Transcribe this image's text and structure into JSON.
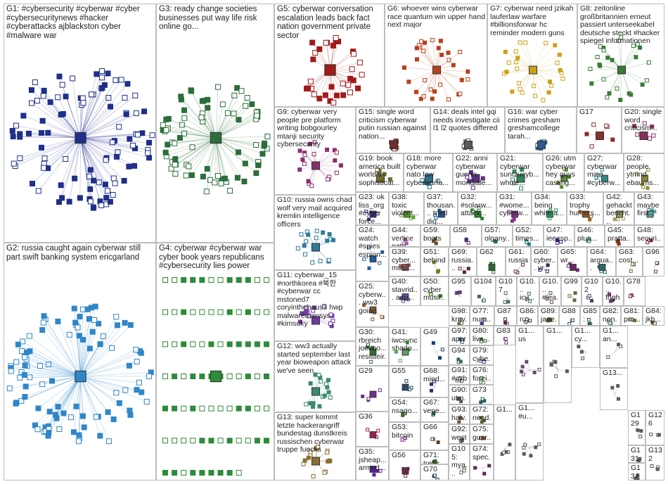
{
  "groups": [
    {
      "id": "g1",
      "label": "G1: #cybersecurity #cyberwar #cyber #cybersecuritynews #hacker #cyberattacks ajblackston cyber #malware war",
      "color": "#1f2f8a"
    },
    {
      "id": "g2",
      "label": "G2: russia caught again cyberwar still part swift banking system ericgarland",
      "color": "#2f86c8"
    },
    {
      "id": "g3",
      "label": "G3: ready change societies businesses put way life risk online go...",
      "color": "#2c6e3a"
    },
    {
      "id": "g4",
      "label": "G4: cyberwar #cyberwar war cyber book years republicans #cybersecurity lies power",
      "color": "#2d8b3a"
    },
    {
      "id": "g5",
      "label": "G5: cyberwar conversation escalation leads back fact nation government private sector",
      "color": "#a11a1a"
    },
    {
      "id": "g6",
      "label": "G6: whoever wins cyberwar race quantum win upper hand next major",
      "color": "#b7411a"
    },
    {
      "id": "g7",
      "label": "G7: cyberwar need jzikah lauferlaw warfare #billionsforwar hc reminder modern guns",
      "color": "#c9a21a"
    },
    {
      "id": "g8",
      "label": "G8: zeitonline großbritannien erneut passiert unterseekabel deutsche steckt #hacker spiegel informationen",
      "color": "#3a7a3a"
    },
    {
      "id": "g9",
      "label": "G9: cyberwar very people pre platform writing bobgourley mtanji security cybersecurity",
      "color": "#8a2f6e"
    },
    {
      "id": "g10",
      "label": "G10: russia owns chad wolf very mail acquired kremlin intelligence officers",
      "color": "#2f7a9a"
    },
    {
      "id": "g11",
      "label": "G11: cyberwar_15 #northkorea #북한 #cyberwar cc mstoned7 coryinthehous3 hwp malwaremansys #kimsuky",
      "color": "#6e3aa1"
    },
    {
      "id": "g12",
      "label": "G12: ww3 actually started september last year bioweapon attack we've seen",
      "color": "#3a8a6e"
    },
    {
      "id": "g13",
      "label": "G13: super kommt letzte hackerangriff bundestag dunstkreis russischen cyberwar truppe fuecks",
      "color": "#8a6e2f"
    },
    {
      "id": "g14",
      "label": "G14: deals intel gqi needs investigate cii l1 l2 quotes differed",
      "color": "#5a5a5a"
    },
    {
      "id": "g15",
      "label": "G15: single word criticism cyberwar putin russian against nation...",
      "color": "#6e2f2f"
    },
    {
      "id": "g16",
      "label": "G16: war cyber crimes gresham greshamcollege tarah...",
      "color": "#2f5a8a"
    },
    {
      "id": "g17",
      "label": "G17",
      "color": "#8a2f2f"
    },
    {
      "id": "g18",
      "label": "G18: more cyberwar nato law cyberwarfa...",
      "color": "#2f6e8a"
    },
    {
      "id": "g19",
      "label": "G19: book america built world's sophisticat...",
      "color": "#6e6e2f"
    },
    {
      "id": "g20",
      "label": "G20: single word criticism...",
      "color": "#8a2f5a"
    },
    {
      "id": "g21",
      "label": "G21: cyberwar suntzucyb... whole...",
      "color": "#2f8a5a"
    },
    {
      "id": "g22",
      "label": "G22: anni cyberwar guerra mondiale...",
      "color": "#5a2f8a"
    },
    {
      "id": "g23",
      "label": "G23: uk liss_org #cyber force...",
      "color": "#2f2f8a"
    },
    {
      "id": "g24",
      "label": "G24: watch #spies espion...",
      "color": "#1f5fa0"
    },
    {
      "id": "g25",
      "label": "G25: cyberw... ww3 going",
      "color": "#8a5a2f"
    },
    {
      "id": "g26",
      "label": "G26: utm cyberwar hey guys casting...",
      "color": "#5a8a2f"
    },
    {
      "id": "g27",
      "label": "G27: cyberwar mine #cyberw...",
      "color": "#2f8a8a"
    },
    {
      "id": "g28",
      "label": "G28: people ytmnd ebaums...",
      "color": "#8a8a2f"
    },
    {
      "id": "g29",
      "label": "G29",
      "color": "#6e2f8a"
    },
    {
      "id": "g30",
      "label": "G30: rbreich joekno... resisteir...",
      "color": "#2f6e2f"
    },
    {
      "id": "g31",
      "label": "G31: #wome... cyberw...",
      "color": "#8a2f8a"
    },
    {
      "id": "g32",
      "label": "G32: #solarw... attack...",
      "color": "#2f8a2f"
    },
    {
      "id": "g33",
      "label": "G33: trophy hunters...",
      "color": "#a05a1f"
    },
    {
      "id": "g34",
      "label": "G34: being white a...",
      "color": "#1fa05a"
    },
    {
      "id": "g35",
      "label": "G35: jsheap... armed...",
      "color": "#5a1fa0"
    },
    {
      "id": "g36",
      "label": "G36",
      "color": "#a01f5a"
    },
    {
      "id": "g37",
      "label": "G37: thousan... tried dig...",
      "color": "#1f5aa0"
    },
    {
      "id": "g38",
      "label": "G38: toxic violent...",
      "color": "#5aa01f"
    },
    {
      "id": "g39",
      "label": "G39: cyber... musli...",
      "color": "#a05a5a"
    },
    {
      "id": "g40",
      "label": "G40: stavrid... aep...",
      "color": "#5a5aa0"
    },
    {
      "id": "g41",
      "label": "G41: iwcsync shado...",
      "color": "#5aa05a"
    },
    {
      "id": "g42",
      "label": "G42: gehackt bericht...",
      "color": "#a0a05a"
    },
    {
      "id": "g43",
      "label": "G43: maybe first...",
      "color": "#5aa0a0"
    },
    {
      "id": "g44",
      "label": "G44: vertice nato...",
      "color": "#a05aa0"
    },
    {
      "id": "g45",
      "label": "G45: pratta...",
      "color": "#7a3a1a"
    },
    {
      "id": "g46",
      "label": "G46: plus...",
      "color": "#1a7a3a"
    },
    {
      "id": "g47",
      "label": "G47: ieeesp...",
      "color": "#3a1a7a"
    },
    {
      "id": "g48",
      "label": "G48: securi...",
      "color": "#7a1a3a"
    },
    {
      "id": "g49",
      "label": "G49",
      "color": "#1a3a7a"
    },
    {
      "id": "g50",
      "label": "G50: cyber musli...",
      "color": "#3a7a1a"
    },
    {
      "id": "g51",
      "label": "G51: behind",
      "color": "#7a7a1a"
    },
    {
      "id": "g52",
      "label": "G52: times...",
      "color": "#1a7a7a"
    },
    {
      "id": "g53",
      "label": "G53: bitcoin",
      "color": "#7a1a7a"
    },
    {
      "id": "g54",
      "label": "G54: nsago...",
      "color": "#4a6a2a"
    },
    {
      "id": "g55",
      "label": "G55",
      "color": "#2a4a6a"
    },
    {
      "id": "g56",
      "label": "G56",
      "color": "#6a2a4a"
    },
    {
      "id": "g57",
      "label": "G57: olgany...",
      "color": "#2a6a4a"
    },
    {
      "id": "g58",
      "label": "G58",
      "color": "#4a2a6a"
    },
    {
      "id": "g59",
      "label": "G59: boots",
      "color": "#6a4a2a"
    },
    {
      "id": "g60",
      "label": "G60: cyber... vr...",
      "color": "#2a2a6a"
    },
    {
      "id": "g61",
      "label": "G61: russia",
      "color": "#6a2a2a"
    },
    {
      "id": "g62",
      "label": "G62",
      "color": "#2a6a2a"
    },
    {
      "id": "g63",
      "label": "G63: cost...",
      "color": "#6a6a2a"
    },
    {
      "id": "g64",
      "label": "G64: argua...",
      "color": "#2a6a6a"
    },
    {
      "id": "g65",
      "label": "G65: wr...",
      "color": "#6a2a6a"
    },
    {
      "id": "g66",
      "label": "G66",
      "color": "#5a3a2a"
    },
    {
      "id": "g67",
      "label": "G67: vene...",
      "color": "#2a5a3a"
    },
    {
      "id": "g68",
      "label": "G68: mind...",
      "color": "#3a2a5a"
    },
    {
      "id": "g69",
      "label": "G69: russia...",
      "color": "#5a2a3a"
    },
    {
      "id": "g70",
      "label": "G70",
      "color": "#2a3a5a"
    },
    {
      "id": "g71",
      "label": "G71: treas...",
      "color": "#3a5a2a"
    },
    {
      "id": "g72",
      "label": "G72: need...",
      "color": "#5a5a2a"
    },
    {
      "id": "g73",
      "label": "G73",
      "color": "#2a5a5a"
    },
    {
      "id": "g74",
      "label": "G74: spec...",
      "color": "#5a2a5a"
    },
    {
      "id": "g75",
      "label": "G75: guer...",
      "color": "#7a4a3a"
    },
    {
      "id": "g76",
      "label": "G76: forei...",
      "color": "#3a7a4a"
    },
    {
      "id": "g77",
      "label": "G77: num...",
      "color": "#4a3a7a"
    },
    {
      "id": "g78",
      "label": "G78",
      "color": "#7a3a4a"
    },
    {
      "id": "g79",
      "label": "G79: cybe...",
      "color": "#3a4a7a"
    },
    {
      "id": "g80",
      "label": "G80: live...",
      "color": "#4a7a3a"
    },
    {
      "id": "g81",
      "label": "G81: pro...",
      "color": "#7a7a3a"
    },
    {
      "id": "g82",
      "label": "G82: non...",
      "color": "#3a7a7a"
    },
    {
      "id": "g83",
      "label": "G83",
      "color": "#7a3a7a"
    },
    {
      "id": "g84",
      "label": "G84: jkh...",
      "color": "#5a4a2a"
    },
    {
      "id": "g85",
      "label": "G85: eco...",
      "color": "#2a5a4a"
    },
    {
      "id": "g86",
      "label": "G86: ru...",
      "color": "#4a2a5a"
    },
    {
      "id": "g87",
      "label": "G87",
      "color": "#5a2a4a"
    },
    {
      "id": "g88",
      "label": "G88",
      "color": "#2a4a5a"
    },
    {
      "id": "g89",
      "label": "G89: jane...",
      "color": "#4a5a2a"
    },
    {
      "id": "g90",
      "label": "G90: utm...",
      "color": "#5a5a4a"
    },
    {
      "id": "g91",
      "label": "G91: #cyb...",
      "color": "#4a5a5a"
    },
    {
      "id": "g92",
      "label": "G92: west...",
      "color": "#5a4a5a"
    },
    {
      "id": "g93",
      "label": "G93: halv...",
      "color": "#6a5a3a"
    },
    {
      "id": "g94",
      "label": "G94",
      "color": "#3a6a5a"
    },
    {
      "id": "g95",
      "label": "G95",
      "color": "#5a3a6a"
    },
    {
      "id": "g96",
      "label": "G96",
      "color": "#6a3a5a"
    },
    {
      "id": "g97",
      "label": "G97: appr...",
      "color": "#3a5a6a"
    },
    {
      "id": "g98",
      "label": "G98: krav...",
      "color": "#5a6a3a"
    },
    {
      "id": "g99",
      "label": "G99",
      "color": "#6a6a3a"
    },
    {
      "id": "g100",
      "label": "G10... icy...",
      "color": "#3a6a6a"
    },
    {
      "id": "g101",
      "label": "G10... frigh...",
      "color": "#6a3a6a"
    },
    {
      "id": "g102",
      "label": "G102",
      "color": "#4a4a6a"
    },
    {
      "id": "g103",
      "label": "G10... #lea...",
      "color": "#6a4a4a"
    },
    {
      "id": "g104",
      "label": "G104",
      "color": "#4a6a4a"
    },
    {
      "id": "g105",
      "label": "G105: mya...",
      "color": "#6a6a4a"
    },
    {
      "id": "g107",
      "label": "G107",
      "color": "#4a6a6a"
    },
    {
      "id": "g_s1",
      "label": "G1... us",
      "color": "#6a4a6a"
    },
    {
      "id": "g_s2",
      "label": "G1...",
      "color": "#5a5a5a"
    },
    {
      "id": "g_s3",
      "label": "G1... cy...",
      "color": "#5a5a5a"
    },
    {
      "id": "g_s4",
      "label": "G1... an...",
      "color": "#5a5a5a"
    },
    {
      "id": "g_s5",
      "label": "G13...",
      "color": "#5a5a5a"
    },
    {
      "id": "g126",
      "label": "G126",
      "color": "#5a5a5a"
    },
    {
      "id": "g129",
      "label": "G129",
      "color": "#5a5a5a"
    },
    {
      "id": "g131",
      "label": "G131",
      "color": "#5a5a5a"
    },
    {
      "id": "g132",
      "label": "G132",
      "color": "#5a5a5a"
    },
    {
      "id": "g134",
      "label": "G134",
      "color": "#5a5a5a"
    },
    {
      "id": "g_s6",
      "label": "G1...",
      "color": "#5a5a5a"
    },
    {
      "id": "g_s7",
      "label": "G1... #u...",
      "color": "#5a5a5a"
    }
  ]
}
